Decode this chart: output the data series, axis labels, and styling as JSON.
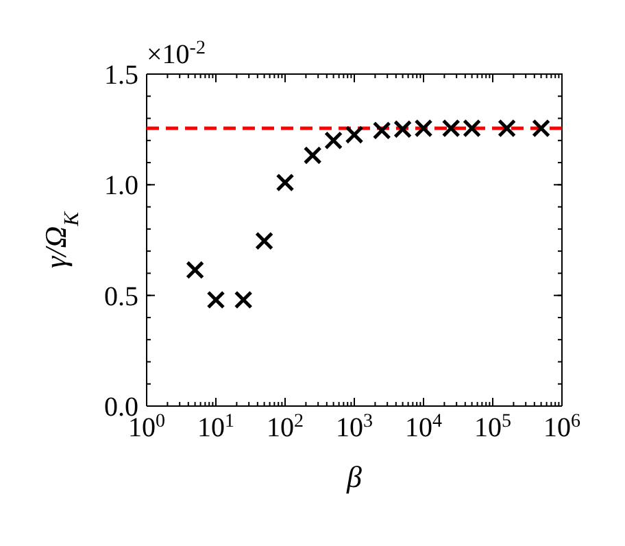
{
  "chart_data": {
    "type": "scatter",
    "xlabel": "β",
    "ylabel": "γ/Ω$_{K}$",
    "log": "x",
    "marker": "cross",
    "grid": false,
    "x": [
      5,
      10,
      25,
      50,
      100,
      250,
      500,
      1000,
      2500,
      5000,
      10000,
      25000,
      50000,
      160000,
      500000
    ],
    "series": [
      {
        "color": "#000000",
        "values": [
          0.615,
          0.48,
          0.48,
          0.746,
          1.01,
          1.133,
          1.2,
          1.226,
          1.245,
          1.251,
          1.255,
          1.255,
          1.255,
          1.255,
          1.255
        ]
      }
    ],
    "xlim": [
      1,
      1000000
    ],
    "xticks": [
      {
        "value": 1,
        "label": "10$^{0}$"
      },
      {
        "value": 10,
        "label": "10$^{1}$"
      },
      {
        "value": 100,
        "label": "10$^{2}$"
      },
      {
        "value": 1000,
        "label": "10$^{3}$"
      },
      {
        "value": 10000,
        "label": "10$^{4}$"
      },
      {
        "value": 100000,
        "label": "10$^{5}$"
      },
      {
        "value": 1000000,
        "label": "10$^{6}$"
      }
    ],
    "ylim": [
      0,
      1.5
    ],
    "yticks": [
      {
        "value": 0,
        "label": "0.0"
      },
      {
        "value": 0.5,
        "label": "0.5"
      },
      {
        "value": 1,
        "label": "1.0"
      },
      {
        "value": 1.5,
        "label": "1.5"
      }
    ],
    "ref_lines": [
      {
        "axis": "y",
        "value": 1.255,
        "color": "#ff0000",
        "line_style": "dashed"
      }
    ],
    "annotations": [
      "×10$^{-2}$"
    ]
  }
}
